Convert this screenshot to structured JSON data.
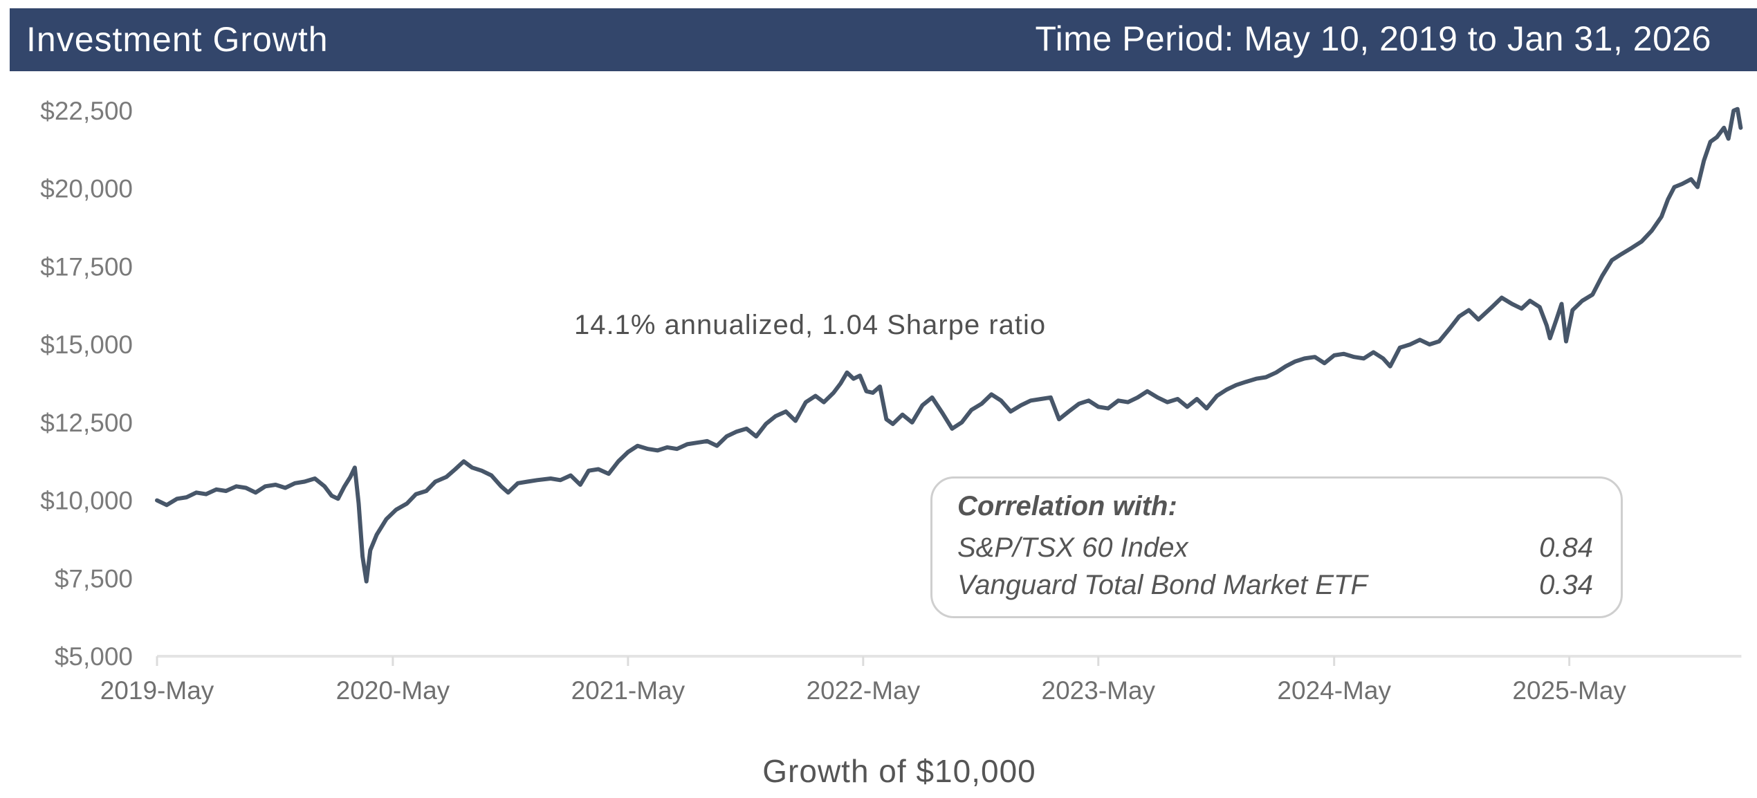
{
  "header": {
    "title": "Investment Growth",
    "period": "Time Period: May 10, 2019 to Jan 31, 2026",
    "background": "#33466b"
  },
  "correlation": {
    "title": "Correlation with:",
    "rows": [
      {
        "name": "S&P/TSX 60 Index",
        "value": "0.84"
      },
      {
        "name": "Vanguard Total Bond Market ETF",
        "value": "0.34"
      }
    ]
  },
  "chart_data": {
    "type": "line",
    "title": "Investment Growth",
    "subtitle": "Growth of $10,000",
    "xlabel": "",
    "ylabel": "",
    "annotation": "14.1% annualized, 1.04 Sharpe ratio",
    "line_color": "#475669",
    "ylim": [
      5000,
      22500
    ],
    "xlim": [
      "2019-05-10",
      "2026-01-31"
    ],
    "grid": false,
    "legend": "none",
    "y_ticks": [
      {
        "value": 22500,
        "label": "$22,500"
      },
      {
        "value": 20000,
        "label": "$20,000"
      },
      {
        "value": 17500,
        "label": "$17,500"
      },
      {
        "value": 15000,
        "label": "$15,000"
      },
      {
        "value": 12500,
        "label": "$12,500"
      },
      {
        "value": 10000,
        "label": "$10,000"
      },
      {
        "value": 7500,
        "label": "$7,500"
      },
      {
        "value": 5000,
        "label": "$5,000"
      }
    ],
    "x_ticks": [
      {
        "date": "2019-05-10",
        "label": "2019-May"
      },
      {
        "date": "2020-05-10",
        "label": "2020-May"
      },
      {
        "date": "2021-05-10",
        "label": "2021-May"
      },
      {
        "date": "2022-05-10",
        "label": "2022-May"
      },
      {
        "date": "2023-05-10",
        "label": "2023-May"
      },
      {
        "date": "2024-05-10",
        "label": "2024-May"
      },
      {
        "date": "2025-05-10",
        "label": "2025-May"
      }
    ],
    "series": [
      {
        "name": "Growth of $10,000",
        "points": [
          [
            "2019-05-10",
            10000
          ],
          [
            "2019-05-25",
            9850
          ],
          [
            "2019-06-10",
            10050
          ],
          [
            "2019-06-25",
            10100
          ],
          [
            "2019-07-10",
            10250
          ],
          [
            "2019-07-25",
            10200
          ],
          [
            "2019-08-10",
            10350
          ],
          [
            "2019-08-25",
            10300
          ],
          [
            "2019-09-10",
            10450
          ],
          [
            "2019-09-25",
            10400
          ],
          [
            "2019-10-10",
            10250
          ],
          [
            "2019-10-25",
            10450
          ],
          [
            "2019-11-10",
            10500
          ],
          [
            "2019-11-25",
            10400
          ],
          [
            "2019-12-10",
            10550
          ],
          [
            "2019-12-25",
            10600
          ],
          [
            "2020-01-10",
            10700
          ],
          [
            "2020-01-25",
            10450
          ],
          [
            "2020-02-05",
            10150
          ],
          [
            "2020-02-15",
            10050
          ],
          [
            "2020-02-25",
            10450
          ],
          [
            "2020-03-05",
            10750
          ],
          [
            "2020-03-12",
            11050
          ],
          [
            "2020-03-18",
            9900
          ],
          [
            "2020-03-24",
            8200
          ],
          [
            "2020-03-30",
            7400
          ],
          [
            "2020-04-05",
            8400
          ],
          [
            "2020-04-15",
            8900
          ],
          [
            "2020-04-30",
            9400
          ],
          [
            "2020-05-15",
            9700
          ],
          [
            "2020-06-01",
            9900
          ],
          [
            "2020-06-15",
            10200
          ],
          [
            "2020-07-01",
            10300
          ],
          [
            "2020-07-15",
            10600
          ],
          [
            "2020-08-01",
            10750
          ],
          [
            "2020-08-15",
            11000
          ],
          [
            "2020-08-28",
            11250
          ],
          [
            "2020-09-10",
            11050
          ],
          [
            "2020-09-25",
            10950
          ],
          [
            "2020-10-10",
            10800
          ],
          [
            "2020-10-25",
            10450
          ],
          [
            "2020-11-05",
            10250
          ],
          [
            "2020-11-20",
            10550
          ],
          [
            "2020-12-05",
            10600
          ],
          [
            "2020-12-20",
            10650
          ],
          [
            "2021-01-10",
            10700
          ],
          [
            "2021-01-25",
            10650
          ],
          [
            "2021-02-10",
            10800
          ],
          [
            "2021-02-25",
            10500
          ],
          [
            "2021-03-10",
            10950
          ],
          [
            "2021-03-25",
            11000
          ],
          [
            "2021-04-10",
            10850
          ],
          [
            "2021-04-25",
            11250
          ],
          [
            "2021-05-10",
            11550
          ],
          [
            "2021-05-25",
            11750
          ],
          [
            "2021-06-10",
            11650
          ],
          [
            "2021-06-25",
            11600
          ],
          [
            "2021-07-10",
            11700
          ],
          [
            "2021-07-25",
            11650
          ],
          [
            "2021-08-10",
            11800
          ],
          [
            "2021-08-25",
            11850
          ],
          [
            "2021-09-10",
            11900
          ],
          [
            "2021-09-25",
            11750
          ],
          [
            "2021-10-10",
            12050
          ],
          [
            "2021-10-25",
            12200
          ],
          [
            "2021-11-10",
            12300
          ],
          [
            "2021-11-25",
            12050
          ],
          [
            "2021-12-10",
            12450
          ],
          [
            "2021-12-25",
            12700
          ],
          [
            "2022-01-10",
            12850
          ],
          [
            "2022-01-25",
            12550
          ],
          [
            "2022-02-10",
            13150
          ],
          [
            "2022-02-25",
            13350
          ],
          [
            "2022-03-10",
            13150
          ],
          [
            "2022-03-25",
            13450
          ],
          [
            "2022-04-05",
            13750
          ],
          [
            "2022-04-15",
            14100
          ],
          [
            "2022-04-25",
            13900
          ],
          [
            "2022-05-05",
            14000
          ],
          [
            "2022-05-15",
            13500
          ],
          [
            "2022-05-25",
            13450
          ],
          [
            "2022-06-05",
            13650
          ],
          [
            "2022-06-15",
            12600
          ],
          [
            "2022-06-25",
            12450
          ],
          [
            "2022-07-10",
            12750
          ],
          [
            "2022-07-25",
            12500
          ],
          [
            "2022-08-10",
            13050
          ],
          [
            "2022-08-25",
            13300
          ],
          [
            "2022-09-10",
            12800
          ],
          [
            "2022-09-25",
            12300
          ],
          [
            "2022-10-10",
            12500
          ],
          [
            "2022-10-25",
            12900
          ],
          [
            "2022-11-10",
            13100
          ],
          [
            "2022-11-25",
            13400
          ],
          [
            "2022-12-10",
            13200
          ],
          [
            "2022-12-25",
            12850
          ],
          [
            "2023-01-10",
            13050
          ],
          [
            "2023-01-25",
            13200
          ],
          [
            "2023-02-10",
            13250
          ],
          [
            "2023-02-25",
            13300
          ],
          [
            "2023-03-10",
            12600
          ],
          [
            "2023-03-25",
            12850
          ],
          [
            "2023-04-10",
            13100
          ],
          [
            "2023-04-25",
            13200
          ],
          [
            "2023-05-10",
            13000
          ],
          [
            "2023-05-25",
            12950
          ],
          [
            "2023-06-10",
            13200
          ],
          [
            "2023-06-25",
            13150
          ],
          [
            "2023-07-10",
            13300
          ],
          [
            "2023-07-25",
            13500
          ],
          [
            "2023-08-10",
            13300
          ],
          [
            "2023-08-25",
            13150
          ],
          [
            "2023-09-10",
            13250
          ],
          [
            "2023-09-25",
            13000
          ],
          [
            "2023-10-10",
            13250
          ],
          [
            "2023-10-25",
            12950
          ],
          [
            "2023-11-10",
            13350
          ],
          [
            "2023-11-25",
            13550
          ],
          [
            "2023-12-10",
            13700
          ],
          [
            "2023-12-25",
            13800
          ],
          [
            "2024-01-10",
            13900
          ],
          [
            "2024-01-25",
            13950
          ],
          [
            "2024-02-10",
            14100
          ],
          [
            "2024-02-25",
            14300
          ],
          [
            "2024-03-10",
            14450
          ],
          [
            "2024-03-25",
            14550
          ],
          [
            "2024-04-10",
            14600
          ],
          [
            "2024-04-25",
            14400
          ],
          [
            "2024-05-10",
            14650
          ],
          [
            "2024-05-25",
            14700
          ],
          [
            "2024-06-10",
            14600
          ],
          [
            "2024-06-25",
            14550
          ],
          [
            "2024-07-10",
            14750
          ],
          [
            "2024-07-25",
            14550
          ],
          [
            "2024-08-05",
            14300
          ],
          [
            "2024-08-20",
            14900
          ],
          [
            "2024-09-05",
            15000
          ],
          [
            "2024-09-20",
            15150
          ],
          [
            "2024-10-05",
            15000
          ],
          [
            "2024-10-20",
            15100
          ],
          [
            "2024-11-05",
            15500
          ],
          [
            "2024-11-20",
            15900
          ],
          [
            "2024-12-05",
            16100
          ],
          [
            "2024-12-20",
            15800
          ],
          [
            "2025-01-10",
            16200
          ],
          [
            "2025-01-25",
            16500
          ],
          [
            "2025-02-10",
            16300
          ],
          [
            "2025-02-25",
            16150
          ],
          [
            "2025-03-10",
            16400
          ],
          [
            "2025-03-25",
            16200
          ],
          [
            "2025-04-05",
            15600
          ],
          [
            "2025-04-10",
            15200
          ],
          [
            "2025-04-20",
            15800
          ],
          [
            "2025-04-28",
            16300
          ],
          [
            "2025-05-05",
            15100
          ],
          [
            "2025-05-15",
            16100
          ],
          [
            "2025-05-30",
            16400
          ],
          [
            "2025-06-15",
            16600
          ],
          [
            "2025-06-30",
            17200
          ],
          [
            "2025-07-15",
            17700
          ],
          [
            "2025-07-30",
            17900
          ],
          [
            "2025-08-15",
            18100
          ],
          [
            "2025-08-30",
            18300
          ],
          [
            "2025-09-15",
            18650
          ],
          [
            "2025-09-30",
            19100
          ],
          [
            "2025-10-10",
            19650
          ],
          [
            "2025-10-20",
            20050
          ],
          [
            "2025-11-01",
            20150
          ],
          [
            "2025-11-15",
            20300
          ],
          [
            "2025-11-25",
            20050
          ],
          [
            "2025-12-05",
            20900
          ],
          [
            "2025-12-15",
            21500
          ],
          [
            "2025-12-25",
            21650
          ],
          [
            "2026-01-05",
            21950
          ],
          [
            "2026-01-12",
            21600
          ],
          [
            "2026-01-20",
            22500
          ],
          [
            "2026-01-26",
            22550
          ],
          [
            "2026-01-31",
            21950
          ]
        ]
      }
    ]
  }
}
